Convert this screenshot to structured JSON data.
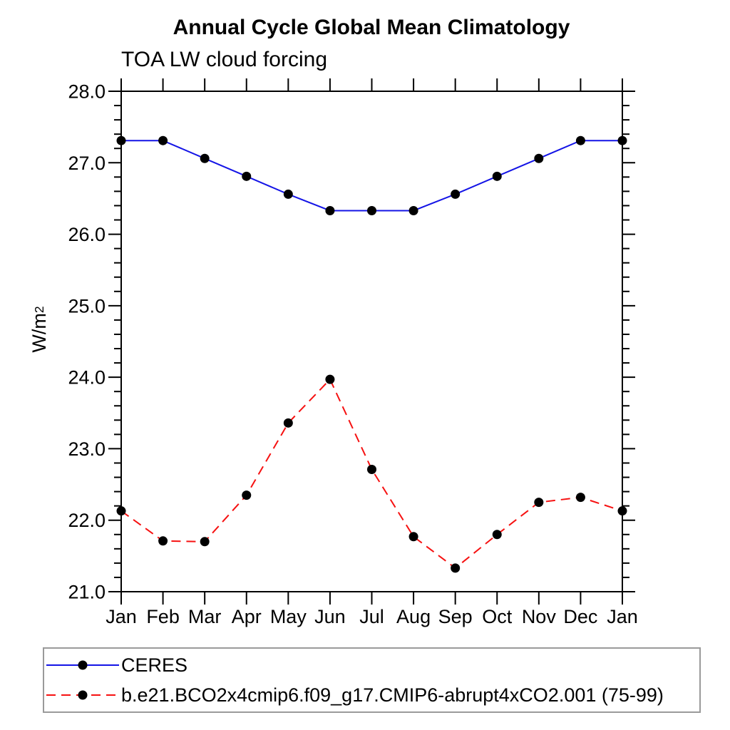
{
  "title": "Annual Cycle Global Mean Climatology",
  "subtitle": "TOA LW cloud forcing",
  "y_axis_label": "W/m",
  "y_axis_label_superscript": "2",
  "chart_data": {
    "type": "line",
    "categories": [
      "Jan",
      "Feb",
      "Mar",
      "Apr",
      "May",
      "Jun",
      "Jul",
      "Aug",
      "Sep",
      "Oct",
      "Nov",
      "Dec",
      "Jan"
    ],
    "series": [
      {
        "name": "CERES",
        "line_style": "solid",
        "line_color": "#1414e6",
        "marker": "filled-circle",
        "marker_color": "#000000",
        "values": [
          27.31,
          27.31,
          27.06,
          26.81,
          26.56,
          26.33,
          26.33,
          26.33,
          26.56,
          26.81,
          27.06,
          27.31,
          27.31
        ]
      },
      {
        "name": "b.e21.BCO2x4cmip6.f09_g17.CMIP6-abrupt4xCO2.001 (75-99)",
        "line_style": "dashed",
        "line_color": "#f61111",
        "marker": "filled-circle",
        "marker_color": "#000000",
        "values": [
          22.13,
          21.71,
          21.7,
          22.35,
          23.36,
          23.97,
          22.71,
          21.77,
          21.33,
          21.8,
          22.25,
          22.32,
          22.13
        ]
      }
    ],
    "ylim": [
      21.0,
      28.0
    ],
    "y_tick_labels": [
      "21.0",
      "22.0",
      "23.0",
      "24.0",
      "25.0",
      "26.0",
      "27.0",
      "28.0"
    ],
    "y_major_step": 1.0,
    "y_minor_step": 0.2,
    "grid": false,
    "legend_position": "bottom-left-box",
    "axis_color": "#000000"
  }
}
